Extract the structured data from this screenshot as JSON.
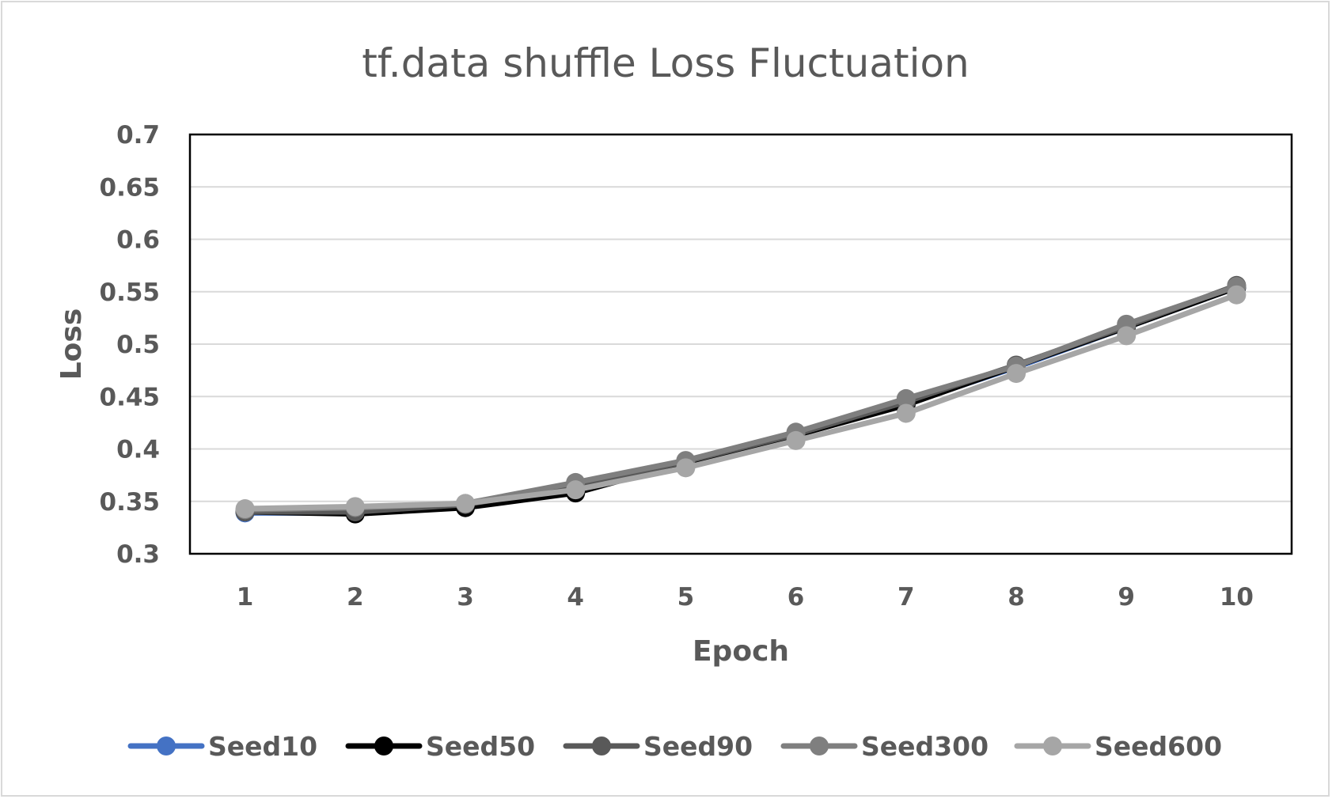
{
  "chart_data": {
    "type": "line",
    "title": "tf.data shuffle Loss Fluctuation",
    "xlabel": "Epoch",
    "ylabel": "Loss",
    "categories": [
      "1",
      "2",
      "3",
      "4",
      "5",
      "6",
      "7",
      "8",
      "9",
      "10"
    ],
    "ylim": [
      0.3,
      0.7
    ],
    "yticks": [
      "0.3",
      "0.35",
      "0.4",
      "0.45",
      "0.5",
      "0.55",
      "0.6",
      "0.65",
      "0.7"
    ],
    "grid": true,
    "legend": "bottom",
    "series": [
      {
        "name": "Seed10",
        "color": "#4472c4",
        "values": [
          0.339,
          0.339,
          0.346,
          0.36,
          0.388,
          0.414,
          0.443,
          0.478,
          0.516,
          0.554
        ]
      },
      {
        "name": "Seed50",
        "color": "#000000",
        "values": [
          0.34,
          0.338,
          0.344,
          0.358,
          0.387,
          0.413,
          0.442,
          0.479,
          0.516,
          0.554
        ]
      },
      {
        "name": "Seed90",
        "color": "#595959",
        "values": [
          0.34,
          0.34,
          0.347,
          0.364,
          0.388,
          0.414,
          0.445,
          0.48,
          0.517,
          0.556
        ]
      },
      {
        "name": "Seed300",
        "color": "#7f7f7f",
        "values": [
          0.342,
          0.344,
          0.348,
          0.368,
          0.389,
          0.416,
          0.448,
          0.479,
          0.519,
          0.555
        ]
      },
      {
        "name": "Seed600",
        "color": "#a6a6a6",
        "values": [
          0.343,
          0.345,
          0.348,
          0.361,
          0.382,
          0.408,
          0.434,
          0.472,
          0.508,
          0.547
        ]
      }
    ]
  }
}
